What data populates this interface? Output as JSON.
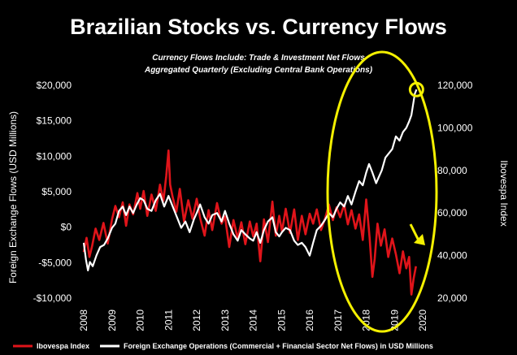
{
  "chart_data": {
    "type": "line",
    "title": "Brazilian Stocks vs. Currency Flows",
    "subtitle_lines": [
      "Currency Flows Include: Trade & Investment Net Flows",
      "Aggregated Quarterly (Excluding Central Bank Operations)"
    ],
    "ylabel_left": "Foreign Exchange Flows (USD Millions)",
    "ylabel_right": "Ibovespa Index",
    "left_axis": {
      "min": -10000,
      "max": 20000,
      "ticks": [
        20000,
        15000,
        10000,
        5000,
        0,
        -5000,
        -10000
      ],
      "tick_labels": [
        "$20,000",
        "$15,000",
        "$10,000",
        "$5,000",
        "$0",
        "-$5,000",
        "-$10,000"
      ]
    },
    "right_axis": {
      "min": 20000,
      "max": 120000,
      "ticks": [
        120000,
        100000,
        80000,
        60000,
        40000,
        20000
      ],
      "tick_labels": [
        "120,000",
        "100,000",
        "80,000",
        "60,000",
        "40,000",
        "20,000"
      ]
    },
    "x_axis": {
      "min": 2008,
      "max": 2020,
      "tick_labels": [
        "2008",
        "2009",
        "2010",
        "2011",
        "2012",
        "2013",
        "2014",
        "2015",
        "2016",
        "2017",
        "2018",
        "2019",
        "2020"
      ]
    },
    "legend_position": "bottom",
    "series": [
      {
        "name": "Ibovespa Index",
        "axis": "left",
        "color": "#e0141a",
        "points": [
          [
            2008.0,
            -3500
          ],
          [
            2008.1,
            -1500
          ],
          [
            2008.2,
            -4200
          ],
          [
            2008.3,
            -2600
          ],
          [
            2008.42,
            -200
          ],
          [
            2008.55,
            -1800
          ],
          [
            2008.7,
            600
          ],
          [
            2008.85,
            -2300
          ],
          [
            2009.0,
            1100
          ],
          [
            2009.12,
            3000
          ],
          [
            2009.25,
            1400
          ],
          [
            2009.38,
            3500
          ],
          [
            2009.5,
            200
          ],
          [
            2009.62,
            3200
          ],
          [
            2009.75,
            1800
          ],
          [
            2009.9,
            4800
          ],
          [
            2010.0,
            2600
          ],
          [
            2010.12,
            5100
          ],
          [
            2010.25,
            1600
          ],
          [
            2010.4,
            4600
          ],
          [
            2010.55,
            2300
          ],
          [
            2010.7,
            6000
          ],
          [
            2010.82,
            3700
          ],
          [
            2010.92,
            7200
          ],
          [
            2011.0,
            10800
          ],
          [
            2011.06,
            6000
          ],
          [
            2011.15,
            4200
          ],
          [
            2011.28,
            2200
          ],
          [
            2011.4,
            5400
          ],
          [
            2011.55,
            800
          ],
          [
            2011.7,
            3800
          ],
          [
            2011.85,
            1200
          ],
          [
            2012.0,
            4000
          ],
          [
            2012.12,
            1300
          ],
          [
            2012.28,
            -1200
          ],
          [
            2012.42,
            2400
          ],
          [
            2012.55,
            -400
          ],
          [
            2012.72,
            3400
          ],
          [
            2012.88,
            500
          ],
          [
            2013.0,
            1500
          ],
          [
            2013.15,
            -2800
          ],
          [
            2013.3,
            1000
          ],
          [
            2013.45,
            -1600
          ],
          [
            2013.58,
            700
          ],
          [
            2013.72,
            -2400
          ],
          [
            2013.88,
            800
          ],
          [
            2014.0,
            -1300
          ],
          [
            2014.12,
            500
          ],
          [
            2014.25,
            -4800
          ],
          [
            2014.38,
            1100
          ],
          [
            2014.52,
            -2100
          ],
          [
            2014.68,
            3600
          ],
          [
            2014.8,
            -1200
          ],
          [
            2014.92,
            1600
          ],
          [
            2015.02,
            -600
          ],
          [
            2015.15,
            2600
          ],
          [
            2015.3,
            -800
          ],
          [
            2015.45,
            2500
          ],
          [
            2015.58,
            -1800
          ],
          [
            2015.72,
            1600
          ],
          [
            2015.85,
            -1000
          ],
          [
            2016.0,
            1900
          ],
          [
            2016.12,
            500
          ],
          [
            2016.25,
            2500
          ],
          [
            2016.4,
            -400
          ],
          [
            2016.55,
            1300
          ],
          [
            2016.68,
            3200
          ],
          [
            2016.82,
            1000
          ],
          [
            2016.95,
            2800
          ],
          [
            2017.08,
            1400
          ],
          [
            2017.22,
            3200
          ],
          [
            2017.35,
            400
          ],
          [
            2017.48,
            2400
          ],
          [
            2017.62,
            -200
          ],
          [
            2017.75,
            1800
          ],
          [
            2017.88,
            -1800
          ],
          [
            2018.0,
            3900
          ],
          [
            2018.12,
            -1500
          ],
          [
            2018.22,
            -7000
          ],
          [
            2018.3,
            -4500
          ],
          [
            2018.4,
            500
          ],
          [
            2018.52,
            -2600
          ],
          [
            2018.65,
            -300
          ],
          [
            2018.78,
            -4200
          ],
          [
            2018.92,
            -1600
          ],
          [
            2019.05,
            -3800
          ],
          [
            2019.18,
            -6500
          ],
          [
            2019.3,
            -3400
          ],
          [
            2019.42,
            -5800
          ],
          [
            2019.52,
            -4200
          ],
          [
            2019.6,
            -9500
          ],
          [
            2019.68,
            -7200
          ],
          [
            2019.76,
            -5500
          ]
        ]
      },
      {
        "name": "Foreign Exchange Operations (Commercial + Financial Sector Net Flows) in USD Millions",
        "axis": "right",
        "color": "#ffffff",
        "points": [
          [
            2008.0,
            46000
          ],
          [
            2008.08,
            38000
          ],
          [
            2008.15,
            33000
          ],
          [
            2008.22,
            37000
          ],
          [
            2008.32,
            35000
          ],
          [
            2008.45,
            40000
          ],
          [
            2008.58,
            44000
          ],
          [
            2008.72,
            45000
          ],
          [
            2008.85,
            48000
          ],
          [
            2009.0,
            53000
          ],
          [
            2009.12,
            55000
          ],
          [
            2009.25,
            61000
          ],
          [
            2009.38,
            63000
          ],
          [
            2009.5,
            59000
          ],
          [
            2009.62,
            63000
          ],
          [
            2009.75,
            60000
          ],
          [
            2009.88,
            64000
          ],
          [
            2010.0,
            67000
          ],
          [
            2010.12,
            66000
          ],
          [
            2010.25,
            62000
          ],
          [
            2010.4,
            61000
          ],
          [
            2010.55,
            66000
          ],
          [
            2010.7,
            69000
          ],
          [
            2010.85,
            63000
          ],
          [
            2011.0,
            68000
          ],
          [
            2011.15,
            63000
          ],
          [
            2011.3,
            58000
          ],
          [
            2011.45,
            53000
          ],
          [
            2011.6,
            56000
          ],
          [
            2011.75,
            51000
          ],
          [
            2011.9,
            57000
          ],
          [
            2012.0,
            60000
          ],
          [
            2012.12,
            64000
          ],
          [
            2012.28,
            58000
          ],
          [
            2012.42,
            55000
          ],
          [
            2012.55,
            59000
          ],
          [
            2012.72,
            60000
          ],
          [
            2012.88,
            56000
          ],
          [
            2013.0,
            61000
          ],
          [
            2013.15,
            55000
          ],
          [
            2013.3,
            50000
          ],
          [
            2013.45,
            47000
          ],
          [
            2013.58,
            52000
          ],
          [
            2013.72,
            50000
          ],
          [
            2013.88,
            48000
          ],
          [
            2014.0,
            47000
          ],
          [
            2014.12,
            51000
          ],
          [
            2014.25,
            46000
          ],
          [
            2014.38,
            52000
          ],
          [
            2014.52,
            56000
          ],
          [
            2014.68,
            58000
          ],
          [
            2014.8,
            51000
          ],
          [
            2014.92,
            49000
          ],
          [
            2015.02,
            51000
          ],
          [
            2015.15,
            53000
          ],
          [
            2015.3,
            52000
          ],
          [
            2015.45,
            47000
          ],
          [
            2015.58,
            45000
          ],
          [
            2015.72,
            46000
          ],
          [
            2015.85,
            44000
          ],
          [
            2016.0,
            40000
          ],
          [
            2016.12,
            46000
          ],
          [
            2016.25,
            52000
          ],
          [
            2016.4,
            54000
          ],
          [
            2016.55,
            57000
          ],
          [
            2016.68,
            60000
          ],
          [
            2016.82,
            58000
          ],
          [
            2016.95,
            62000
          ],
          [
            2017.08,
            65000
          ],
          [
            2017.22,
            63000
          ],
          [
            2017.35,
            68000
          ],
          [
            2017.48,
            64000
          ],
          [
            2017.62,
            70000
          ],
          [
            2017.75,
            75000
          ],
          [
            2017.88,
            73000
          ],
          [
            2018.0,
            79000
          ],
          [
            2018.1,
            83000
          ],
          [
            2018.22,
            79000
          ],
          [
            2018.35,
            74000
          ],
          [
            2018.45,
            77000
          ],
          [
            2018.55,
            80000
          ],
          [
            2018.68,
            86000
          ],
          [
            2018.8,
            88000
          ],
          [
            2018.92,
            90000
          ],
          [
            2019.05,
            96000
          ],
          [
            2019.18,
            94000
          ],
          [
            2019.3,
            98000
          ],
          [
            2019.42,
            100000
          ],
          [
            2019.52,
            103000
          ],
          [
            2019.6,
            106000
          ],
          [
            2019.66,
            111000
          ],
          [
            2019.72,
            116000
          ],
          [
            2019.78,
            118000
          ]
        ]
      }
    ],
    "annotations": [
      {
        "type": "ellipse",
        "color": "#f4f000",
        "description": "highlight 2016-2020"
      },
      {
        "type": "circle",
        "color": "#f4f000",
        "description": "latest Ibovespa high"
      },
      {
        "type": "arrow",
        "color": "#f4f000",
        "direction": "down"
      }
    ]
  }
}
